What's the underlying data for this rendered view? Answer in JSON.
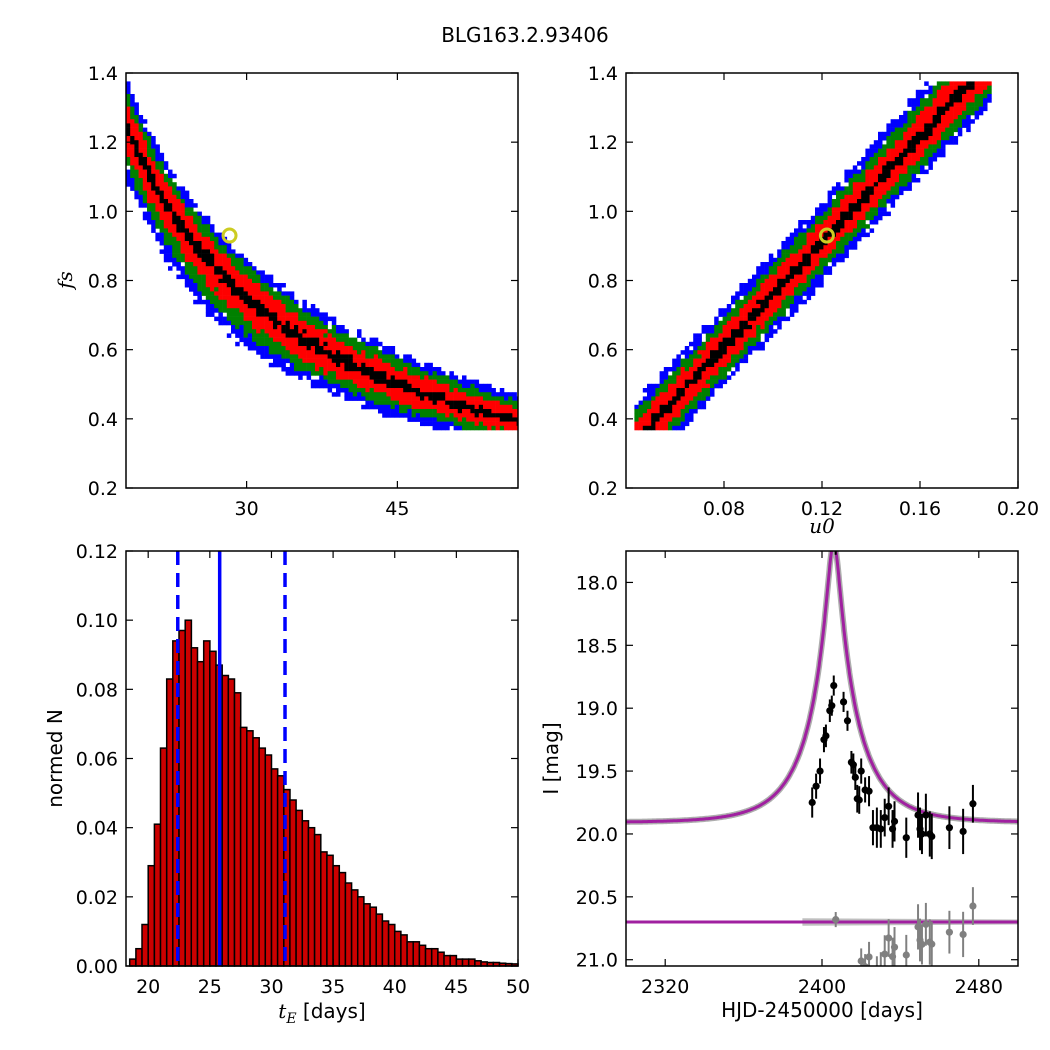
{
  "figure_title": "BLG163.2.93406",
  "colors": {
    "blue": "#0000ff",
    "green": "#008000",
    "red": "#ff0000",
    "black": "#000000",
    "best_fit_marker": "#cccc22",
    "hist_bar": "#cc0000",
    "model": "#a020a0",
    "residual": "#808080"
  },
  "chart_data": [
    {
      "panel": "top-left",
      "type": "heatmap",
      "title": "",
      "xlabel": "",
      "ylabel": "f_s",
      "xlim": [
        18,
        57
      ],
      "ylim": [
        0.2,
        1.4
      ],
      "xticks": [
        30,
        45
      ],
      "yticks": [
        0.2,
        0.4,
        0.6,
        0.8,
        1.0,
        1.2,
        1.4
      ],
      "levels": [
        "blue",
        "green",
        "red",
        "black"
      ],
      "band": {
        "relation": "f_s ~ 22.5 / t_E",
        "x_range": [
          21.5,
          52
        ],
        "y_range": [
          0.37,
          1.37
        ]
      },
      "best_fit": {
        "x": 28.3,
        "y": 0.93
      }
    },
    {
      "panel": "top-right",
      "type": "heatmap",
      "title": "",
      "xlabel": "u_0",
      "ylabel": "",
      "xlim": [
        0.04,
        0.2
      ],
      "ylim": [
        0.2,
        1.4
      ],
      "xticks": [
        0.08,
        0.12,
        0.16,
        0.2
      ],
      "yticks": [
        0.2,
        0.4,
        0.6,
        0.8,
        1.0,
        1.2,
        1.4
      ],
      "levels": [
        "blue",
        "green",
        "red",
        "black"
      ],
      "band": {
        "relation": "f_s ~ 7.6 * u_0",
        "x_range": [
          0.043,
          0.19
        ],
        "y_range": [
          0.37,
          1.37
        ]
      },
      "best_fit": {
        "x": 0.122,
        "y": 0.93
      }
    },
    {
      "panel": "bottom-left",
      "type": "bar",
      "title": "",
      "xlabel": "t_E [days]",
      "ylabel": "normed N",
      "xlim": [
        18.2,
        50
      ],
      "ylim": [
        0,
        0.12
      ],
      "xticks": [
        20,
        25,
        30,
        35,
        40,
        45,
        50
      ],
      "yticks": [
        0.0,
        0.02,
        0.04,
        0.06,
        0.08,
        0.1,
        0.12
      ],
      "bin_width": 0.5,
      "bin_start": 18.5,
      "values": [
        0.002,
        0.005,
        0.012,
        0.029,
        0.041,
        0.063,
        0.083,
        0.094,
        0.097,
        0.1,
        0.092,
        0.088,
        0.094,
        0.091,
        0.087,
        0.084,
        0.083,
        0.079,
        0.069,
        0.068,
        0.066,
        0.063,
        0.061,
        0.057,
        0.055,
        0.051,
        0.048,
        0.045,
        0.042,
        0.04,
        0.038,
        0.033,
        0.032,
        0.029,
        0.027,
        0.024,
        0.022,
        0.02,
        0.018,
        0.017,
        0.015,
        0.013,
        0.012,
        0.01,
        0.009,
        0.007,
        0.007,
        0.006,
        0.005,
        0.005,
        0.004,
        0.003,
        0.003,
        0.002,
        0.002,
        0.002,
        0.0015,
        0.0012,
        0.001,
        0.001,
        0.0008,
        0.0007,
        0.0006
      ],
      "median": 25.8,
      "lower": 22.4,
      "upper": 31.1
    },
    {
      "panel": "bottom-right",
      "type": "scatter",
      "title": "",
      "xlabel": "HJD-2450000 [days]",
      "ylabel": "I [mag]",
      "xlim": [
        2300,
        2500
      ],
      "ylim": [
        21.05,
        17.75
      ],
      "xticks": [
        2320,
        2400,
        2480
      ],
      "yticks": [
        18.0,
        18.5,
        19.0,
        19.5,
        20.0,
        20.5,
        21.0
      ],
      "model": {
        "t0": 2406,
        "u0": 0.122,
        "tE": 26,
        "fs": 0.93,
        "I_base": 19.91
      },
      "residual_offset": 20.7,
      "observations": [
        [
          2395,
          19.75,
          0.12
        ],
        [
          2397,
          19.62,
          0.1
        ],
        [
          2399,
          19.5,
          0.1
        ],
        [
          2401,
          19.25,
          0.1
        ],
        [
          2402,
          19.22,
          0.09
        ],
        [
          2404,
          19.02,
          0.09
        ],
        [
          2405,
          18.98,
          0.08
        ],
        [
          2406,
          18.82,
          0.08
        ],
        [
          2407,
          17.72,
          0.06
        ],
        [
          2411,
          18.95,
          0.08
        ],
        [
          2413,
          19.1,
          0.08
        ],
        [
          2415,
          19.43,
          0.09
        ],
        [
          2416,
          19.45,
          0.09
        ],
        [
          2417,
          19.55,
          0.1
        ],
        [
          2418,
          19.72,
          0.11
        ],
        [
          2419,
          19.73,
          0.11
        ],
        [
          2420,
          19.5,
          0.1
        ],
        [
          2422,
          19.65,
          0.1
        ],
        [
          2424,
          19.66,
          0.12
        ],
        [
          2426,
          19.95,
          0.14
        ],
        [
          2428,
          19.95,
          0.16
        ],
        [
          2430,
          19.96,
          0.15
        ],
        [
          2432,
          19.87,
          0.15
        ],
        [
          2434,
          19.78,
          0.15
        ],
        [
          2436,
          19.96,
          0.15
        ],
        [
          2437,
          19.9,
          0.16
        ],
        [
          2443,
          20.03,
          0.16
        ],
        [
          2449,
          19.85,
          0.18
        ],
        [
          2450,
          19.96,
          0.17
        ],
        [
          2451,
          20.0,
          0.16
        ],
        [
          2453,
          19.85,
          0.17
        ],
        [
          2455,
          20.0,
          0.18
        ],
        [
          2456,
          20.02,
          0.18
        ],
        [
          2465,
          19.95,
          0.17
        ],
        [
          2472,
          19.98,
          0.18
        ],
        [
          2477,
          19.76,
          0.15
        ]
      ]
    }
  ]
}
